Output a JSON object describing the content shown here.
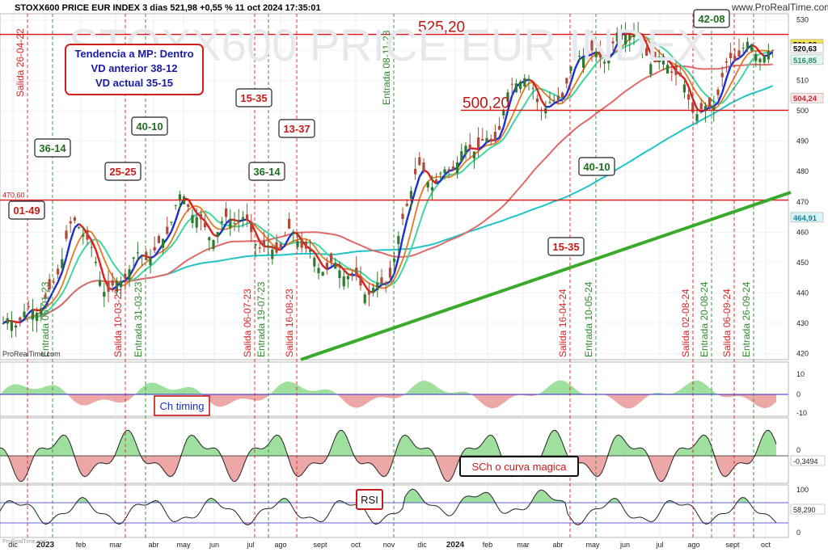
{
  "header": {
    "title": "STOXX600 PRICE EUR INDEX 3 dias 521,98 +0,55 % 11 oct 2024 17:35:01",
    "watermark_main": "STOXX600 PRICE EUR INDEX",
    "watermark_site": "www.ProRealTime.com",
    "copyright_main": "ProRealTime.com",
    "copyright_sub": "ProRealTime.com"
  },
  "colors": {
    "bull_candle": "#2f7a2f",
    "bear_candle": "#b04a3a",
    "fast_ma_up": "#1a2fd0",
    "fast_ma_down": "#e21b1b",
    "mid_ma": "#e07a28",
    "ma_green_light": "#3fd6a0",
    "ma_long_red": "#e06a6a",
    "ma_cyan": "#1fc4c8",
    "trend_line": "#3aaa2a",
    "level_line": "#dd1111",
    "osc_pos": "#7fd67f",
    "osc_neg": "#e88a8a",
    "blue_zero": "#2b2bcc"
  },
  "info_box": {
    "line1": "Tendencia a MP: Dentro",
    "line2": "VD anterior 38-12",
    "line3": "VD actual 35-15"
  },
  "levels": [
    {
      "value": 525.2,
      "label": "525,20"
    },
    {
      "value": 500.2,
      "label": "500,20"
    },
    {
      "value": 470.6,
      "label": "470,60"
    }
  ],
  "badges": [
    {
      "text": "36-14",
      "color": "green"
    },
    {
      "text": "01-49",
      "color": "red"
    },
    {
      "text": "25-25",
      "color": "red"
    },
    {
      "text": "40-10",
      "color": "green"
    },
    {
      "text": "15-35",
      "color": "red"
    },
    {
      "text": "36-14",
      "color": "green"
    },
    {
      "text": "13-37",
      "color": "red"
    },
    {
      "text": "40-10",
      "color": "green"
    },
    {
      "text": "15-35",
      "color": "red"
    },
    {
      "text": "42-08",
      "color": "green"
    }
  ],
  "vertical_events": [
    {
      "label": "Salida 26-04-22",
      "type": "exit"
    },
    {
      "label": "Entrada 06-01-23",
      "type": "entry"
    },
    {
      "label": "Salida 10-03-23",
      "type": "exit"
    },
    {
      "label": "Entrada 31-03-23",
      "type": "entry"
    },
    {
      "label": "Salida 06-07-23",
      "type": "exit"
    },
    {
      "label": "Entrada 19-07-23",
      "type": "entry"
    },
    {
      "label": "Salida 16-08-23",
      "type": "exit"
    },
    {
      "label": "Entrada 08-11-23",
      "type": "entry"
    },
    {
      "label": "Salida 16-04-24",
      "type": "exit"
    },
    {
      "label": "Entrada 10-05-24",
      "type": "entry"
    },
    {
      "label": "Salida 02-08-24",
      "type": "exit"
    },
    {
      "label": "Entrada 20-08-24",
      "type": "entry"
    },
    {
      "label": "Salida 06-09-24",
      "type": "exit"
    },
    {
      "label": "Entrada 26-09-24",
      "type": "entry"
    }
  ],
  "price_axis": {
    "ticks": [
      "530",
      "520",
      "510",
      "500",
      "490",
      "480",
      "470",
      "460",
      "450",
      "440",
      "430",
      "420"
    ],
    "last_price": "521,98",
    "ma_fast_value": "520,63",
    "ma_mid_value": "516,85",
    "ma_long_value": "504,24",
    "ma_cyan_value": "464,91"
  },
  "time_axis": {
    "labels": [
      "dic",
      "2023",
      "feb",
      "mar",
      "abr",
      "may",
      "jun",
      "jul",
      "ago",
      "sept",
      "oct",
      "nov",
      "dic",
      "2024",
      "feb",
      "mar",
      "abr",
      "may",
      "jun",
      "jul",
      "ago",
      "sept",
      "oct"
    ]
  },
  "panels": {
    "ch_timing": {
      "label": "Ch timing",
      "ticks": [
        "10",
        "0",
        "-10"
      ]
    },
    "sch": {
      "label": "SCh o curva magica",
      "ticks": [
        "0"
      ],
      "value": "-0,3494"
    },
    "rsi": {
      "label": "RSI",
      "ticks": [
        "100",
        "50",
        "0"
      ],
      "value": "58,290"
    }
  },
  "chart_data": {
    "type": "candlestick",
    "title": "STOXX600 PRICE EUR INDEX 3 dias 521,98 +0,55 % 11 oct 2024 17:35:01",
    "ylim": [
      418,
      532
    ],
    "x_range": [
      "2022-12-01",
      "2024-10-11"
    ],
    "bar_period": "3 dias",
    "series": [
      {
        "name": "price_close",
        "x": [
          "2022-12",
          "2023-01",
          "2023-02",
          "2023-03",
          "2023-04",
          "2023-05",
          "2023-06",
          "2023-07",
          "2023-08",
          "2023-09",
          "2023-10",
          "2023-11",
          "2023-12",
          "2024-01",
          "2024-02",
          "2024-03",
          "2024-04",
          "2024-05",
          "2024-06",
          "2024-07",
          "2024-08",
          "2024-09",
          "2024-10"
        ],
        "values": [
          427,
          441,
          461,
          440,
          457,
          467,
          463,
          460,
          456,
          453,
          441,
          447,
          481,
          480,
          493,
          508,
          504,
          521,
          523,
          520,
          499,
          515,
          522
        ]
      }
    ]
  }
}
